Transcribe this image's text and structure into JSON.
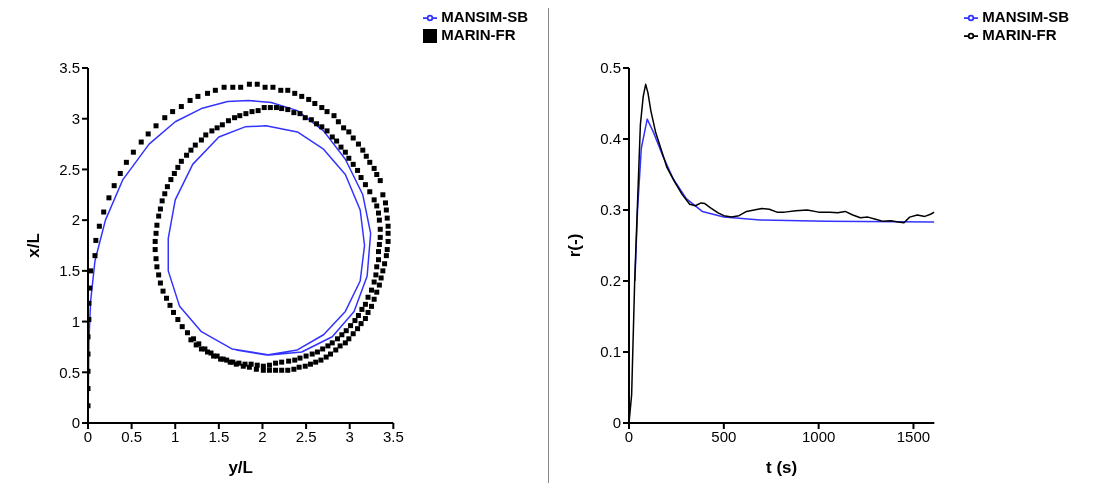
{
  "chart_data": [
    {
      "type": "line",
      "xlabel": "y/L",
      "ylabel": "x/L",
      "xlim": [
        0,
        3.5
      ],
      "ylim": [
        0,
        3.5
      ],
      "xticks": [
        0,
        0.5,
        1,
        1.5,
        2,
        2.5,
        3,
        3.5
      ],
      "yticks": [
        0,
        0.5,
        1,
        1.5,
        2,
        2.5,
        3,
        3.5
      ],
      "grid": false,
      "legend": "top right",
      "series": [
        {
          "name": "MANSIM-SB",
          "color": "#3333ff",
          "marker": "none",
          "x": [
            0,
            0.01,
            0.03,
            0.08,
            0.2,
            0.4,
            0.7,
            1.0,
            1.3,
            1.6,
            1.84,
            2.1,
            2.4,
            2.7,
            2.95,
            3.15,
            3.24,
            3.2,
            3.05,
            2.8,
            2.45,
            2.08,
            1.65,
            1.3,
            1.05,
            0.92,
            0.92,
            1.0,
            1.2,
            1.5,
            1.8,
            2.04,
            2.4,
            2.7,
            2.95,
            3.12,
            3.17,
            3.12,
            2.95,
            2.7,
            2.4,
            2.05,
            1.7
          ],
          "values": [
            0,
            0.8,
            1.2,
            1.6,
            2.0,
            2.4,
            2.75,
            2.97,
            3.1,
            3.17,
            3.18,
            3.16,
            3.08,
            2.88,
            2.6,
            2.25,
            1.87,
            1.45,
            1.1,
            0.85,
            0.7,
            0.67,
            0.73,
            0.9,
            1.15,
            1.5,
            1.82,
            2.2,
            2.55,
            2.82,
            2.92,
            2.93,
            2.87,
            2.7,
            2.45,
            2.1,
            1.75,
            1.4,
            1.1,
            0.87,
            0.72,
            0.67,
            0.72
          ]
        },
        {
          "name": "MARIN-FR",
          "type": "scatter",
          "color": "#000000",
          "marker": "square",
          "x": [
            0,
            0,
            0,
            0,
            0,
            0.01,
            0.01,
            0.02,
            0.03,
            0.08,
            0.09,
            0.13,
            0.18,
            0.24,
            0.3,
            0.37,
            0.44,
            0.52,
            0.61,
            0.69,
            0.78,
            0.88,
            0.97,
            1.07,
            1.17,
            1.26,
            1.37,
            1.46,
            1.56,
            1.66,
            1.75,
            1.85,
            1.94,
            2.03,
            2.12,
            2.21,
            2.29,
            2.37,
            2.45,
            2.53,
            2.6,
            2.68,
            2.74,
            2.82,
            2.87,
            2.93,
            2.99,
            3.04,
            3.1,
            3.15,
            3.19,
            3.23,
            3.28,
            3.31,
            3.35,
            3.38,
            3.41,
            3.42,
            3.43,
            3.44,
            3.44,
            3.44,
            3.43,
            3.42,
            3.4,
            3.38,
            3.36,
            3.34,
            3.31,
            3.28,
            3.25,
            3.21,
            3.18,
            3.13,
            3.09,
            3.04,
            2.99,
            2.95,
            2.89,
            2.84,
            2.78,
            2.73,
            2.67,
            2.61,
            2.55,
            2.49,
            2.42,
            2.36,
            2.29,
            2.22,
            2.15,
            2.08,
            2.01,
            1.93,
            1.85,
            1.78,
            1.7,
            1.63,
            1.55,
            1.48,
            1.41,
            1.34,
            1.27,
            1.21,
            1.14,
            1.08,
            1.03,
            0.98,
            0.94,
            0.9,
            0.86,
            0.83,
            0.81,
            0.79,
            0.78,
            0.77,
            0.77,
            0.78,
            0.79,
            0.81,
            0.83,
            0.85,
            0.88,
            0.91,
            0.95,
            0.99,
            1.03,
            1.07,
            1.13,
            1.18,
            1.23,
            1.3,
            1.35,
            1.42,
            1.48,
            1.54,
            1.61,
            1.68,
            1.74,
            1.81,
            1.88,
            1.95,
            2.02,
            2.09,
            2.16,
            2.22,
            2.29,
            2.36,
            2.43,
            2.49,
            2.56,
            2.62,
            2.68,
            2.74,
            2.8,
            2.85,
            2.9,
            2.95,
            2.99,
            3.04,
            3.09,
            3.13,
            3.18,
            3.23,
            3.28,
            3.31,
            3.33,
            3.34,
            3.35,
            3.35,
            3.34,
            3.33,
            3.33,
            3.31,
            3.3,
            3.28,
            3.25,
            3.21,
            3.18,
            3.14,
            3.1,
            3.06,
            3.01,
            2.96,
            2.91,
            2.86,
            2.8,
            2.75,
            2.69,
            2.63,
            2.57,
            2.5,
            2.43,
            2.37,
            2.3,
            2.22,
            2.15,
            2.08,
            2.01,
            1.94,
            1.87,
            1.8,
            1.73,
            1.66,
            1.59,
            1.52,
            1.44,
            1.37,
            1.3,
            1.24,
            1.18
          ],
          "values": [
            0.17,
            0.34,
            0.51,
            0.68,
            0.85,
            1.02,
            1.18,
            1.33,
            1.5,
            1.65,
            1.8,
            1.94,
            2.08,
            2.22,
            2.34,
            2.46,
            2.57,
            2.67,
            2.77,
            2.85,
            2.93,
            3.01,
            3.07,
            3.12,
            3.18,
            3.22,
            3.25,
            3.28,
            3.31,
            3.31,
            3.31,
            3.34,
            3.34,
            3.31,
            3.31,
            3.28,
            3.28,
            3.25,
            3.22,
            3.19,
            3.15,
            3.11,
            3.07,
            3.03,
            2.97,
            2.91,
            2.87,
            2.81,
            2.75,
            2.69,
            2.63,
            2.57,
            2.51,
            2.45,
            2.39,
            2.25,
            2.17,
            2.1,
            2.02,
            1.94,
            1.87,
            1.79,
            1.71,
            1.65,
            1.57,
            1.5,
            1.43,
            1.36,
            1.29,
            1.22,
            1.15,
            1.09,
            1.03,
            0.98,
            0.93,
            0.88,
            0.83,
            0.79,
            0.76,
            0.72,
            0.68,
            0.65,
            0.62,
            0.6,
            0.58,
            0.56,
            0.55,
            0.53,
            0.52,
            0.52,
            0.52,
            0.52,
            0.52,
            0.53,
            0.55,
            0.56,
            0.58,
            0.6,
            0.63,
            0.66,
            0.69,
            0.73,
            0.78,
            0.83,
            0.89,
            0.95,
            1.02,
            1.09,
            1.16,
            1.23,
            1.3,
            1.38,
            1.46,
            1.54,
            1.62,
            1.71,
            1.79,
            1.87,
            1.95,
            2.04,
            2.11,
            2.19,
            2.26,
            2.33,
            2.4,
            2.46,
            2.52,
            2.58,
            2.64,
            2.69,
            2.74,
            2.79,
            2.84,
            2.88,
            2.91,
            2.94,
            2.98,
            3.01,
            3.03,
            3.05,
            3.07,
            3.08,
            3.11,
            3.11,
            3.11,
            3.1,
            3.09,
            3.06,
            3.05,
            3.01,
            2.99,
            2.95,
            2.92,
            2.88,
            2.82,
            2.78,
            2.72,
            2.67,
            2.61,
            2.55,
            2.49,
            2.42,
            2.35,
            2.28,
            2.2,
            2.14,
            2.07,
            2.0,
            1.91,
            1.83,
            1.76,
            1.69,
            1.61,
            1.54,
            1.46,
            1.39,
            1.31,
            1.24,
            1.17,
            1.12,
            1.06,
            1.01,
            0.96,
            0.91,
            0.87,
            0.83,
            0.79,
            0.76,
            0.73,
            0.7,
            0.68,
            0.66,
            0.64,
            0.62,
            0.61,
            0.6,
            0.59,
            0.57,
            0.56,
            0.57,
            0.58,
            0.58,
            0.59,
            0.6,
            0.62,
            0.63,
            0.66,
            0.7,
            0.73,
            0.77,
            0.82
          ]
        }
      ]
    },
    {
      "type": "line",
      "xlabel": "t (s)",
      "ylabel": "r(-)",
      "xlim": [
        0,
        1610
      ],
      "ylim": [
        0,
        0.5
      ],
      "xticks": [
        0,
        500,
        1000,
        1500
      ],
      "yticks": [
        0,
        0.1,
        0.2,
        0.3,
        0.4,
        0.5
      ],
      "grid": false,
      "legend": "top right",
      "series": [
        {
          "name": "MANSIM-SB",
          "color": "#3333ff",
          "marker": "none",
          "x": [
            31,
            45,
            65,
            96,
            128,
            177,
            233,
            302,
            386,
            500,
            692,
            1040,
            1610
          ],
          "values": [
            0.2,
            0.3,
            0.387,
            0.428,
            0.41,
            0.377,
            0.344,
            0.316,
            0.298,
            0.29,
            0.286,
            0.284,
            0.283
          ]
        },
        {
          "name": "MARIN-FR",
          "color": "#000000",
          "marker": "none",
          "x": [
            0,
            14,
            30,
            45,
            60,
            75,
            88,
            100,
            115,
            140,
            170,
            200,
            240,
            280,
            320,
            350,
            380,
            400,
            430,
            470,
            500,
            540,
            580,
            620,
            660,
            700,
            740,
            780,
            820,
            880,
            940,
            1000,
            1060,
            1100,
            1140,
            1180,
            1220,
            1260,
            1300,
            1340,
            1380,
            1420,
            1450,
            1480,
            1520,
            1560,
            1590,
            1610
          ],
          "values": [
            0,
            0.04,
            0.2,
            0.31,
            0.42,
            0.46,
            0.477,
            0.465,
            0.44,
            0.41,
            0.385,
            0.36,
            0.34,
            0.322,
            0.308,
            0.306,
            0.31,
            0.309,
            0.303,
            0.296,
            0.292,
            0.29,
            0.292,
            0.298,
            0.3,
            0.302,
            0.301,
            0.297,
            0.297,
            0.299,
            0.3,
            0.297,
            0.297,
            0.296,
            0.298,
            0.293,
            0.289,
            0.29,
            0.287,
            0.284,
            0.285,
            0.283,
            0.282,
            0.29,
            0.293,
            0.291,
            0.294,
            0.297
          ]
        }
      ]
    }
  ]
}
